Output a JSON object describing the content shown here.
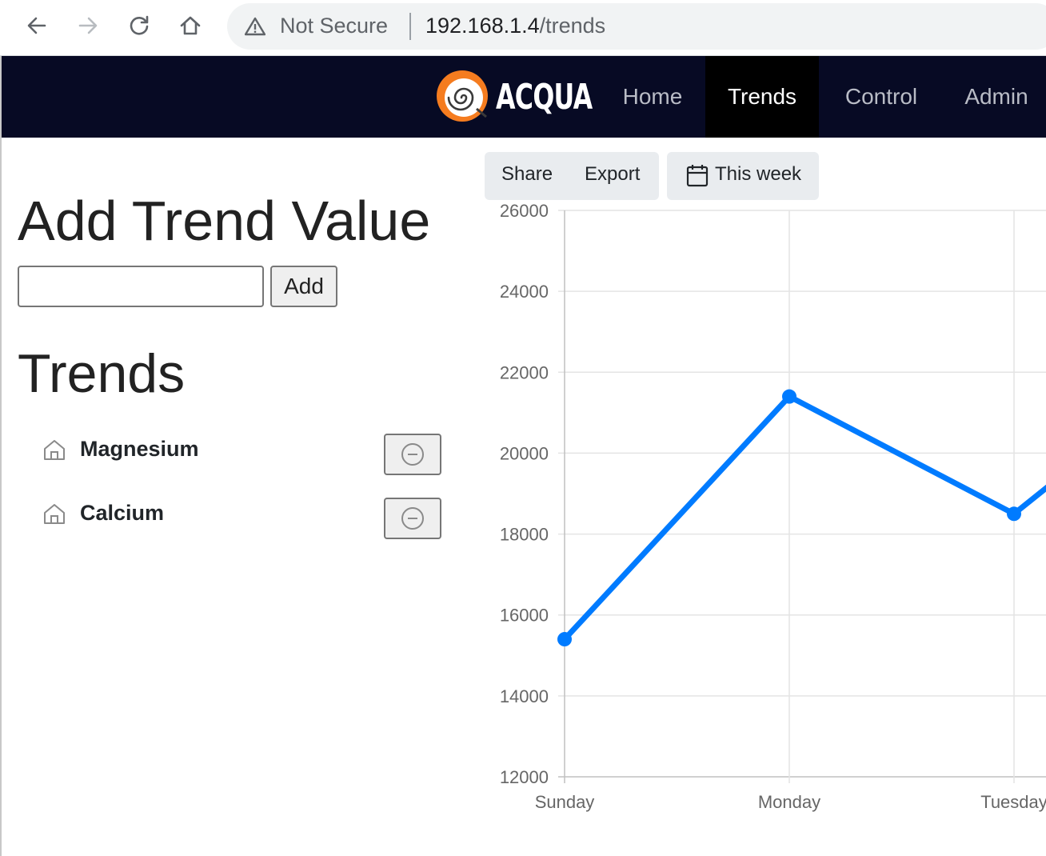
{
  "browser": {
    "security_label": "Not Secure",
    "url_host": "192.168.1.4",
    "url_path": "/trends"
  },
  "navbar": {
    "logo_text": "ACQUA",
    "items": [
      {
        "label": "Home",
        "active": false
      },
      {
        "label": "Trends",
        "active": true
      },
      {
        "label": "Control",
        "active": false
      },
      {
        "label": "Admin",
        "active": false
      }
    ]
  },
  "add_section": {
    "title": "Add Trend Value",
    "input_value": "",
    "add_label": "Add"
  },
  "trends_section": {
    "title": "Trends",
    "items": [
      {
        "label": "Magnesium",
        "icon": "home-icon",
        "action": "remove-icon"
      },
      {
        "label": "Calcium",
        "icon": "home-icon",
        "action": "remove-icon"
      }
    ]
  },
  "toolbar": {
    "share_label": "Share",
    "export_label": "Export",
    "range_label": "This week",
    "range_icon": "calendar-icon"
  },
  "colors": {
    "navbar_bg": "#070a24",
    "active_nav_bg": "#000000",
    "series_color": "#007bff"
  },
  "chart_data": {
    "type": "line",
    "categories": [
      "Sunday",
      "Monday",
      "Tuesday"
    ],
    "series": [
      {
        "values": [
          15400,
          21400,
          18500
        ]
      }
    ],
    "ylim": [
      12000,
      26000
    ],
    "yticks": [
      12000,
      14000,
      16000,
      18000,
      20000,
      22000,
      24000,
      26000
    ],
    "grid": true,
    "xlabel": "",
    "ylabel": "",
    "title": ""
  }
}
